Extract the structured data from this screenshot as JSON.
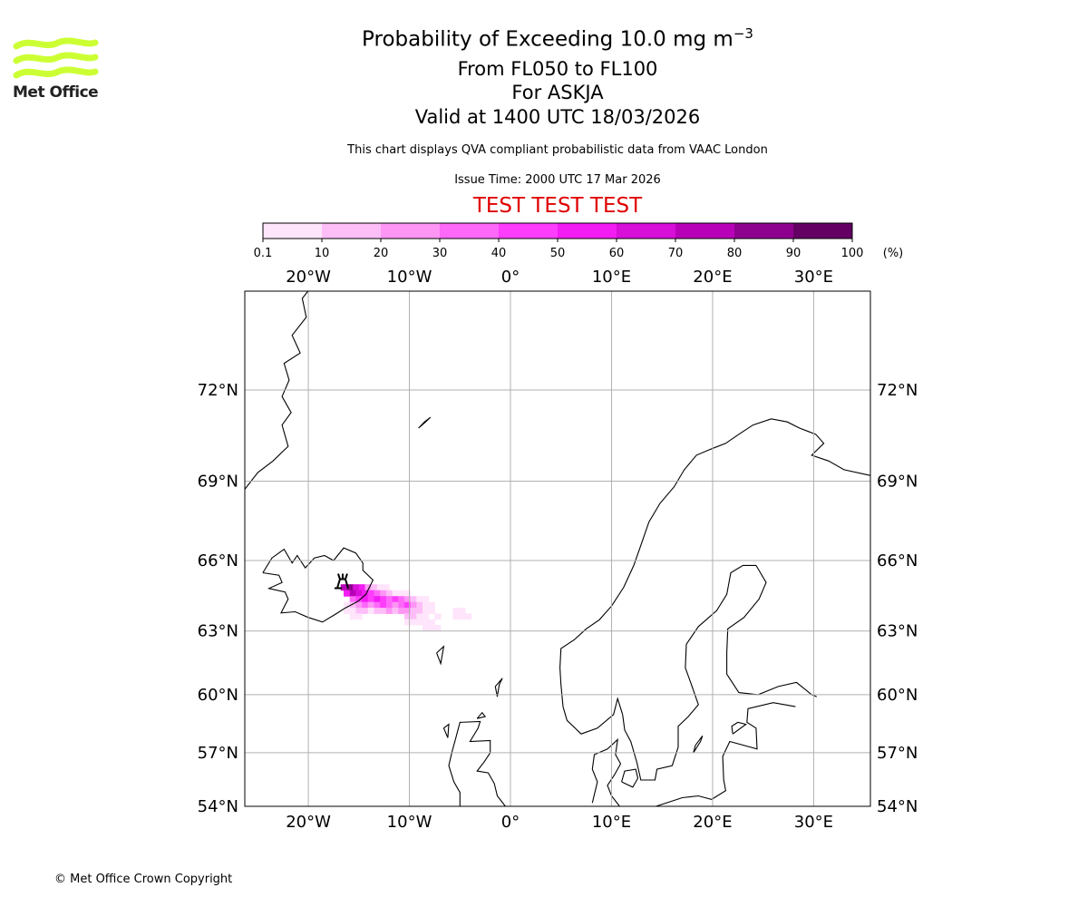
{
  "header": {
    "title_main": "Probability of Exceeding 10.0 mg m",
    "title_exponent": "−3",
    "levels": "From FL050 to FL100",
    "volcano": "For ASKJA",
    "valid": "Valid at 1400 UTC 18/03/2026",
    "subtitle": "This chart displays QVA compliant probabilistic data from VAAC London",
    "issue_time": "Issue Time: 2000 UTC 17 Mar 2026",
    "test_banner": "TEST TEST TEST",
    "test_color": "#e00000"
  },
  "logo": {
    "text": "Met Office",
    "color": "#ccff33"
  },
  "footer": {
    "copyright": "© Met Office Crown Copyright"
  },
  "chart_data": {
    "type": "heatmap",
    "title": "Probability of Exceeding 10.0 mg m−3",
    "colorbar": {
      "ticks": [
        "0.1",
        "10",
        "20",
        "30",
        "40",
        "50",
        "60",
        "70",
        "80",
        "90",
        "100"
      ],
      "unit": "(%)",
      "colors": [
        "#ffe5fb",
        "#fdbef8",
        "#fd95f5",
        "#fd68f9",
        "#fd3cfc",
        "#f31cf3",
        "#d80ed9",
        "#b800b8",
        "#8e008e",
        "#640064"
      ]
    },
    "lon_ticks": [
      {
        "value": -20,
        "label": "20°W"
      },
      {
        "value": -10,
        "label": "10°W"
      },
      {
        "value": 0,
        "label": "0°"
      },
      {
        "value": 10,
        "label": "10°E"
      },
      {
        "value": 20,
        "label": "20°E"
      },
      {
        "value": 30,
        "label": "30°E"
      }
    ],
    "lat_ticks": [
      {
        "value": 72,
        "label": "72°N"
      },
      {
        "value": 69,
        "label": "69°N"
      },
      {
        "value": 66,
        "label": "66°N"
      },
      {
        "value": 63,
        "label": "63°N"
      },
      {
        "value": 60,
        "label": "60°N"
      },
      {
        "value": 57,
        "label": "57°N"
      },
      {
        "value": 54,
        "label": "54°N"
      }
    ],
    "extent": {
      "lon": [
        -26.3,
        35.6
      ],
      "lat": [
        54,
        75.2
      ]
    },
    "grid": true,
    "volcano": {
      "name": "ASKJA",
      "lon": -16.6,
      "lat": 65.05
    },
    "cell_size_deg": {
      "lon": 0.6,
      "lat": 0.25
    },
    "cells": [
      [
        -16.5,
        64.9,
        75
      ],
      [
        -15.9,
        64.9,
        85
      ],
      [
        -15.3,
        64.9,
        65
      ],
      [
        -14.7,
        64.9,
        55
      ],
      [
        -14.1,
        64.9,
        25
      ],
      [
        -13.5,
        64.9,
        15
      ],
      [
        -12.9,
        64.9,
        5
      ],
      [
        -12.3,
        64.9,
        5
      ],
      [
        -16.2,
        64.65,
        55
      ],
      [
        -15.6,
        64.65,
        75
      ],
      [
        -15.0,
        64.65,
        65
      ],
      [
        -14.4,
        64.65,
        55
      ],
      [
        -13.8,
        64.65,
        45
      ],
      [
        -13.2,
        64.65,
        35
      ],
      [
        -12.6,
        64.65,
        25
      ],
      [
        -12.0,
        64.65,
        15
      ],
      [
        -11.4,
        64.65,
        5
      ],
      [
        -10.8,
        64.65,
        5
      ],
      [
        -10.2,
        64.65,
        5
      ],
      [
        -15.6,
        64.4,
        35
      ],
      [
        -15.0,
        64.4,
        45
      ],
      [
        -14.4,
        64.4,
        55
      ],
      [
        -13.8,
        64.4,
        45
      ],
      [
        -13.2,
        64.4,
        55
      ],
      [
        -12.6,
        64.4,
        45
      ],
      [
        -12.0,
        64.4,
        35
      ],
      [
        -11.4,
        64.4,
        45
      ],
      [
        -10.8,
        64.4,
        35
      ],
      [
        -10.2,
        64.4,
        25
      ],
      [
        -9.6,
        64.4,
        15
      ],
      [
        -9.0,
        64.4,
        5
      ],
      [
        -8.4,
        64.4,
        5
      ],
      [
        -16.2,
        64.15,
        5
      ],
      [
        -15.6,
        64.15,
        15
      ],
      [
        -15.0,
        64.15,
        25
      ],
      [
        -14.4,
        64.15,
        35
      ],
      [
        -13.8,
        64.15,
        25
      ],
      [
        -13.2,
        64.15,
        35
      ],
      [
        -12.6,
        64.15,
        45
      ],
      [
        -12.0,
        64.15,
        35
      ],
      [
        -11.4,
        64.15,
        25
      ],
      [
        -10.8,
        64.15,
        35
      ],
      [
        -10.2,
        64.15,
        45
      ],
      [
        -9.6,
        64.15,
        25
      ],
      [
        -9.0,
        64.15,
        15
      ],
      [
        -8.4,
        64.15,
        5
      ],
      [
        -7.8,
        64.15,
        5
      ],
      [
        -16.2,
        63.9,
        5
      ],
      [
        -15.6,
        63.9,
        5
      ],
      [
        -15.0,
        63.9,
        15
      ],
      [
        -14.4,
        63.9,
        15
      ],
      [
        -13.8,
        63.9,
        5
      ],
      [
        -13.2,
        63.9,
        15
      ],
      [
        -12.6,
        63.9,
        15
      ],
      [
        -12.0,
        63.9,
        25
      ],
      [
        -11.4,
        63.9,
        15
      ],
      [
        -10.8,
        63.9,
        25
      ],
      [
        -10.2,
        63.9,
        25
      ],
      [
        -9.6,
        63.9,
        15
      ],
      [
        -9.0,
        63.9,
        15
      ],
      [
        -8.4,
        63.9,
        5
      ],
      [
        -7.8,
        63.9,
        5
      ],
      [
        -5.4,
        63.9,
        5
      ],
      [
        -4.8,
        63.9,
        5
      ],
      [
        -15.6,
        63.65,
        5
      ],
      [
        -15.0,
        63.65,
        5
      ],
      [
        -10.2,
        63.65,
        15
      ],
      [
        -9.6,
        63.65,
        15
      ],
      [
        -9.0,
        63.65,
        5
      ],
      [
        -8.4,
        63.65,
        5
      ],
      [
        -7.2,
        63.65,
        5
      ],
      [
        -5.4,
        63.65,
        5
      ],
      [
        -4.8,
        63.65,
        5
      ],
      [
        -4.2,
        63.65,
        5
      ],
      [
        -10.2,
        63.4,
        5
      ],
      [
        -9.6,
        63.4,
        5
      ],
      [
        -9.0,
        63.4,
        5
      ],
      [
        -8.4,
        63.4,
        5
      ],
      [
        -7.8,
        63.4,
        5
      ],
      [
        -8.4,
        63.15,
        5
      ],
      [
        -7.8,
        63.15,
        5
      ],
      [
        -7.2,
        63.15,
        5
      ]
    ]
  }
}
